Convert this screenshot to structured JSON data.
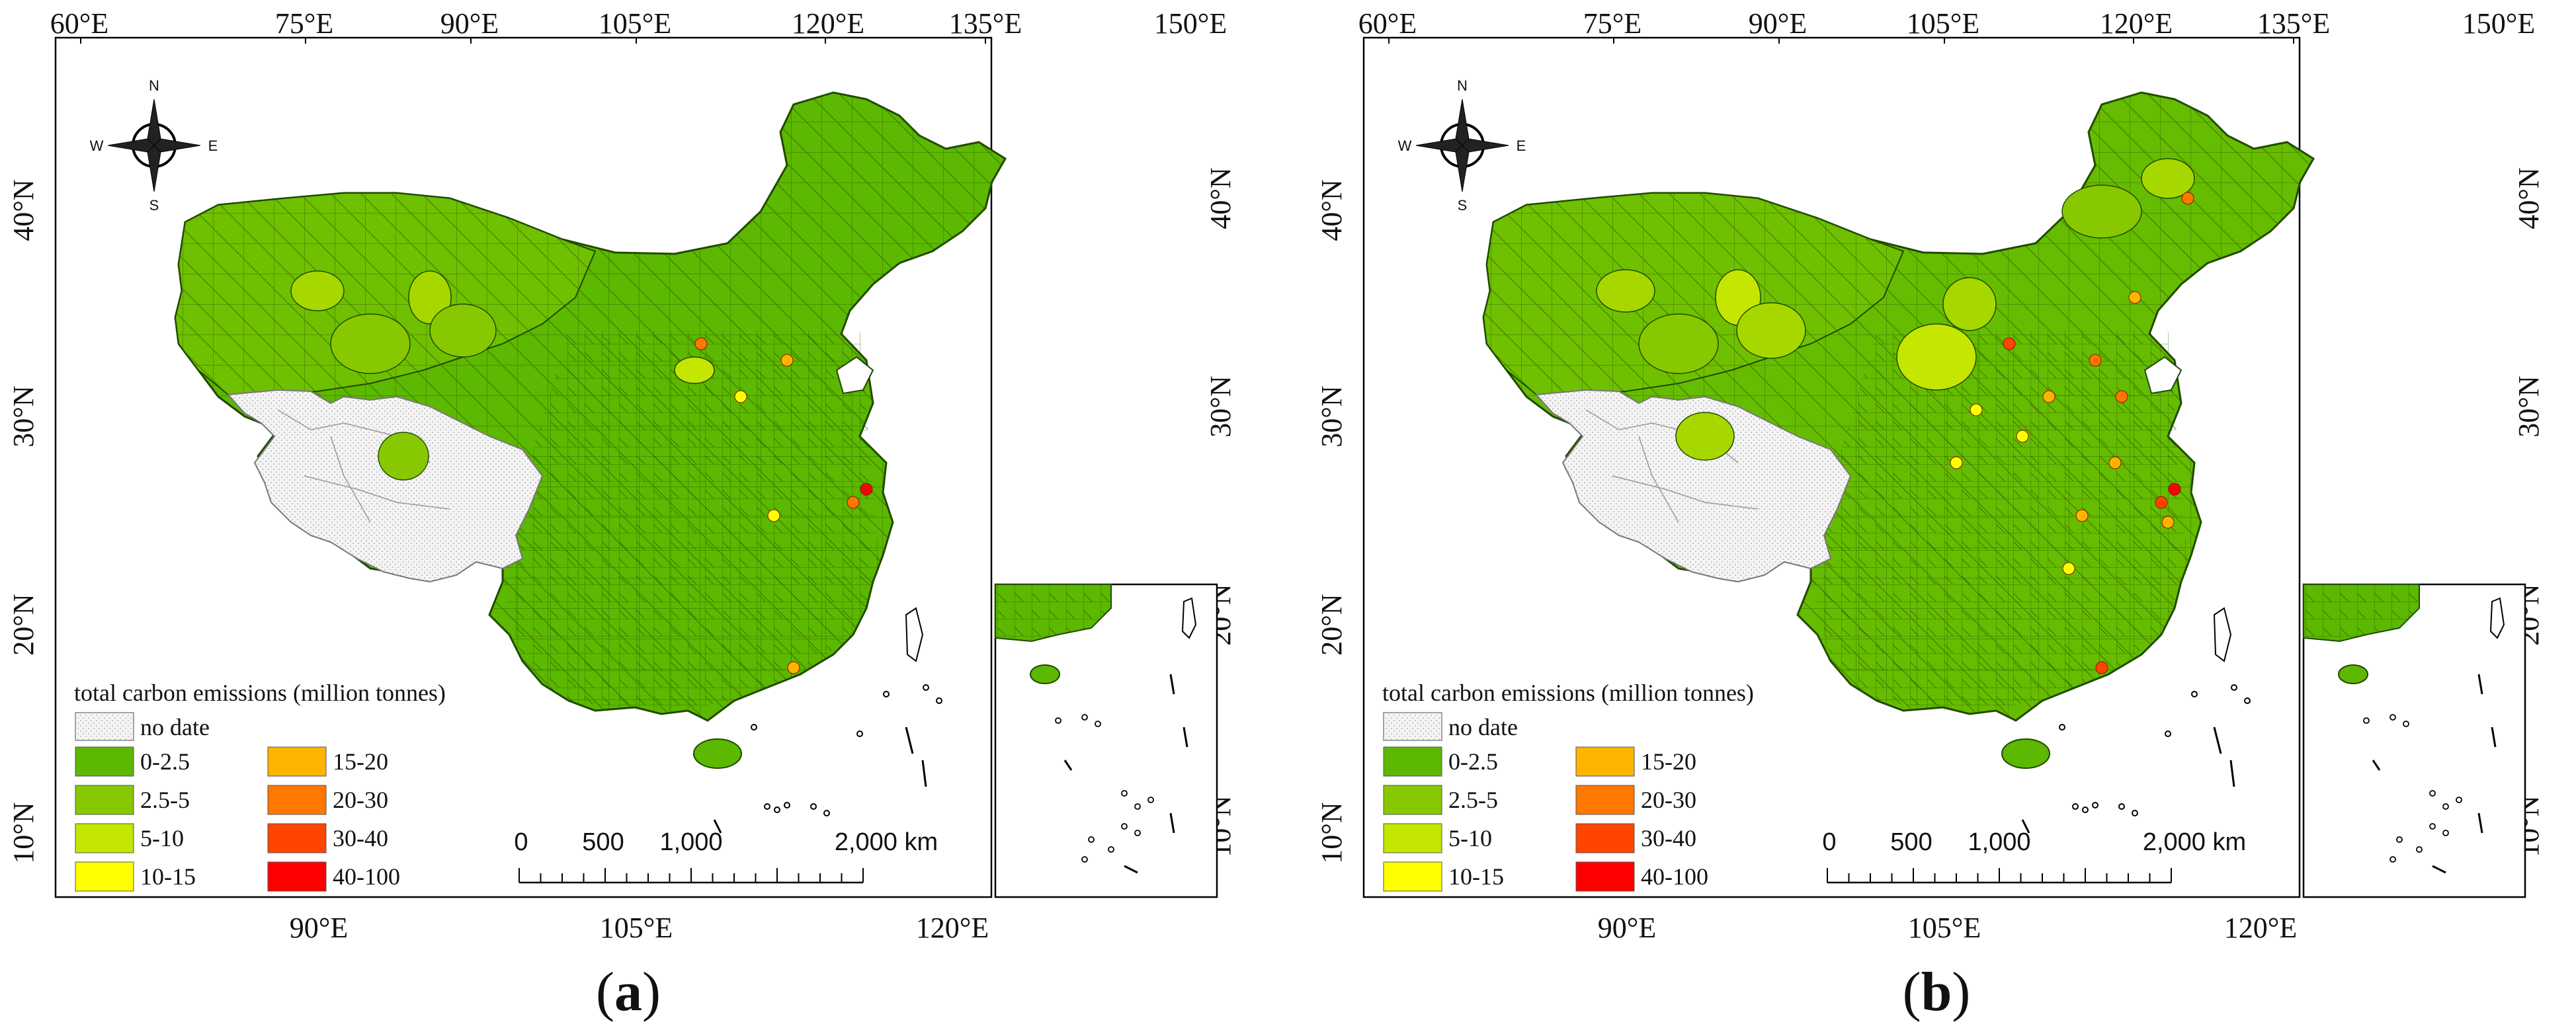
{
  "panels": [
    {
      "caption_letter": "a",
      "variant": "a"
    },
    {
      "caption_letter": "b",
      "variant": "b"
    }
  ],
  "top_axis_labels": [
    "60°E",
    "75°E",
    "90°E",
    "105°E",
    "120°E",
    "135°E",
    "150°E"
  ],
  "bottom_axis_labels": [
    "90°E",
    "105°E",
    "120°E"
  ],
  "left_axis_labels": [
    "40°N",
    "30°N",
    "20°N",
    "10°N"
  ],
  "right_axis_labels": [
    "40°N",
    "30°N",
    "20°N",
    "10°N"
  ],
  "compass": {
    "n": "N",
    "s": "S",
    "e": "E",
    "w": "W"
  },
  "legend": {
    "title": "total carbon emissions (million tonnes)",
    "no_data_label": "no date",
    "classes": [
      {
        "label": "0-2.5",
        "color": "#5cb800"
      },
      {
        "label": "2.5-5",
        "color": "#88c800"
      },
      {
        "label": "5-10",
        "color": "#c4e600"
      },
      {
        "label": "10-15",
        "color": "#ffff00"
      },
      {
        "label": "15-20",
        "color": "#ffb400"
      },
      {
        "label": "20-30",
        "color": "#ff7800"
      },
      {
        "label": "30-40",
        "color": "#ff4500"
      },
      {
        "label": "40-100",
        "color": "#ff0000"
      }
    ]
  },
  "scale_bar": {
    "labels": [
      "0",
      "500",
      "1,000",
      "2,000 km"
    ]
  }
}
